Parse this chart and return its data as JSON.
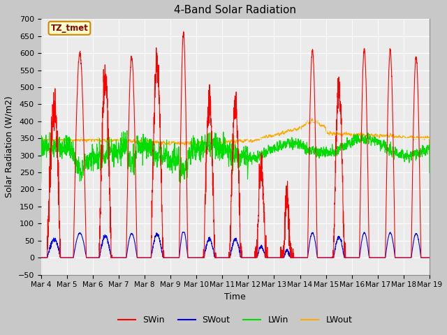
{
  "title": "4-Band Solar Radiation",
  "xlabel": "Time",
  "ylabel": "Solar Radiation (W/m2)",
  "ylim": [
    -50,
    700
  ],
  "plot_bg_color": "#ebebeb",
  "fig_bg_color": "#c8c8c8",
  "annotation_text": "TZ_tmet",
  "annotation_bg": "#ffffcc",
  "annotation_border": "#cc8800",
  "colors": {
    "SWin": "#ff0000",
    "SWout": "#0000ee",
    "LWin": "#00dd00",
    "LWout": "#ffaa00"
  },
  "line_width": 0.8,
  "x_tick_labels": [
    "Mar 4",
    "Mar 5",
    "Mar 6",
    "Mar 7",
    "Mar 8",
    "Mar 9",
    "Mar 10",
    "Mar 11",
    "Mar 12",
    "Mar 13",
    "Mar 14",
    "Mar 15",
    "Mar 16",
    "Mar 17",
    "Mar 18",
    "Mar 19"
  ],
  "num_days": 15
}
